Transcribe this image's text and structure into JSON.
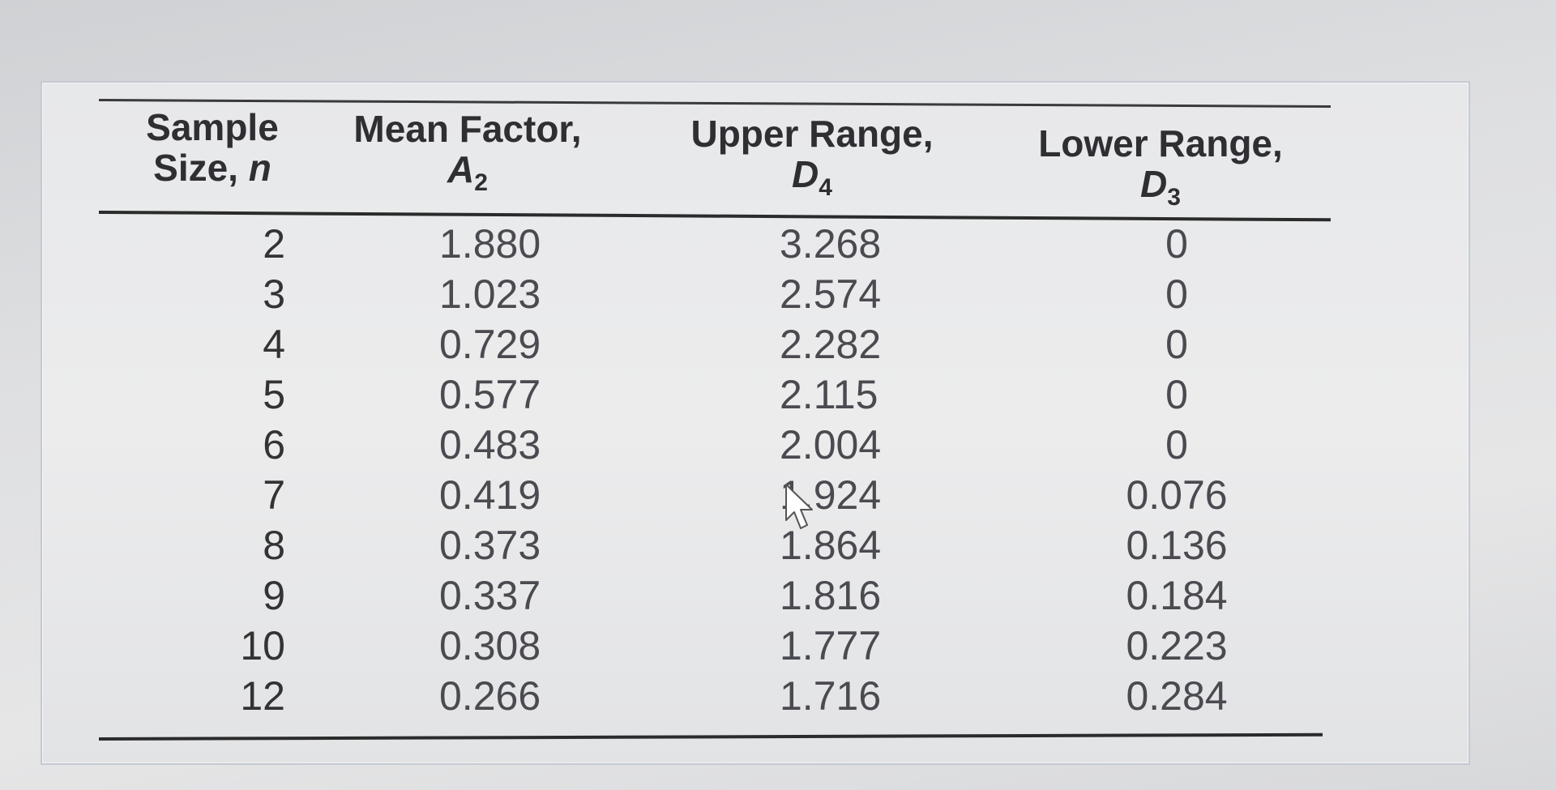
{
  "table": {
    "headers": [
      {
        "line1": "Sample",
        "line2": "Size, ",
        "sym": "n",
        "sub": ""
      },
      {
        "line1": "Mean Factor,",
        "line2": "",
        "sym": "A",
        "sub": "2"
      },
      {
        "line1": "Upper Range,",
        "line2": "",
        "sym": "D",
        "sub": "4"
      },
      {
        "line1": "Lower Range,",
        "line2": "",
        "sym": "D",
        "sub": "3"
      }
    ],
    "rows": [
      [
        "2",
        "1.880",
        "3.268",
        "0"
      ],
      [
        "3",
        "1.023",
        "2.574",
        "0"
      ],
      [
        "4",
        "0.729",
        "2.282",
        "0"
      ],
      [
        "5",
        "0.577",
        "2.115",
        "0"
      ],
      [
        "6",
        "0.483",
        "2.004",
        "0"
      ],
      [
        "7",
        "0.419",
        "1.924",
        "0.076"
      ],
      [
        "8",
        "0.373",
        "1.864",
        "0.136"
      ],
      [
        "9",
        "0.337",
        "1.816",
        "0.184"
      ],
      [
        "10",
        "0.308",
        "1.777",
        "0.223"
      ],
      [
        "12",
        "0.266",
        "1.716",
        "0.284"
      ]
    ]
  },
  "icons": {
    "cursor": "mouse-pointer-icon"
  },
  "colors": {
    "text_header": "#2e2e33",
    "text_body": "#4a4a50",
    "rule": "#2b2b2b",
    "background": "#e7e8ea"
  }
}
